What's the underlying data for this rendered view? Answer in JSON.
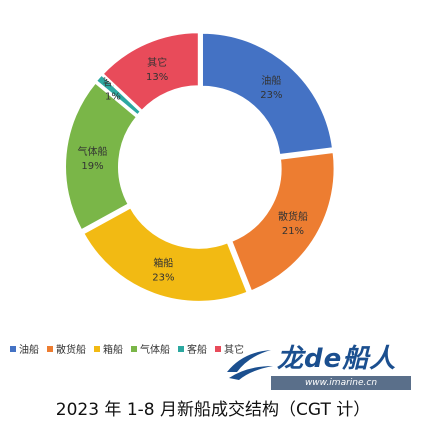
{
  "chart_data": {
    "type": "pie",
    "donut": true,
    "caption": "2023 年 1-8 月新船成交结构（CGT 计）",
    "slices": [
      {
        "label": "油船",
        "value": 23,
        "value_label": "23%",
        "color": "#4472C4"
      },
      {
        "label": "散货船",
        "value": 21,
        "value_label": "21%",
        "color": "#ED7D31"
      },
      {
        "label": "箱船",
        "value": 23,
        "value_label": "23%",
        "color": "#F2BA13"
      },
      {
        "label": "气体船",
        "value": 19,
        "value_label": "19%",
        "color": "#7AB648"
      },
      {
        "label": "客船",
        "value": 1,
        "value_label": "1%",
        "color": "#2CA8A0"
      },
      {
        "label": "其它",
        "value": 13,
        "value_label": "13%",
        "color": "#E84B5A"
      }
    ],
    "legend": [
      "油船",
      "散货船",
      "箱船",
      "气体船",
      "客船",
      "其它"
    ]
  },
  "watermark": {
    "brand": "龙de船人",
    "url": "www.imarine.cn"
  }
}
